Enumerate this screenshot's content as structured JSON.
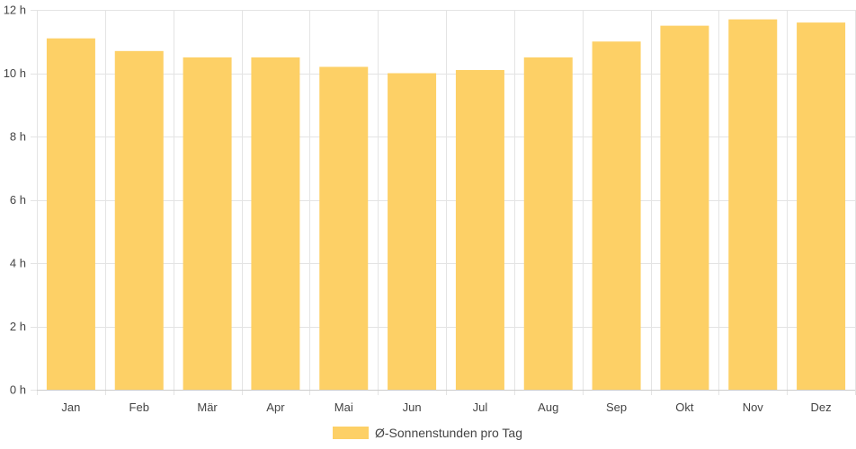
{
  "chart_data": {
    "type": "bar",
    "categories": [
      "Jan",
      "Feb",
      "Mär",
      "Apr",
      "Mai",
      "Jun",
      "Jul",
      "Aug",
      "Sep",
      "Okt",
      "Nov",
      "Dez"
    ],
    "series": [
      {
        "name": "Ø-Sonnenstunden pro Tag",
        "color": "#fdd066",
        "values": [
          11.1,
          10.7,
          10.5,
          10.5,
          10.2,
          10.0,
          10.1,
          10.5,
          11.0,
          11.5,
          11.7,
          11.6
        ]
      }
    ],
    "ylim": [
      0,
      12
    ],
    "yticks": [
      0,
      2,
      4,
      6,
      8,
      10,
      12
    ],
    "ytick_suffix": " h",
    "ytick_labels": [
      "0 h",
      "2 h",
      "4 h",
      "6 h",
      "8 h",
      "10 h",
      "12 h"
    ],
    "grid": true,
    "legend_position": "bottom",
    "colors": {
      "grid": "#e4e4e4",
      "axis": "#cccccc",
      "text": "#444444"
    }
  }
}
